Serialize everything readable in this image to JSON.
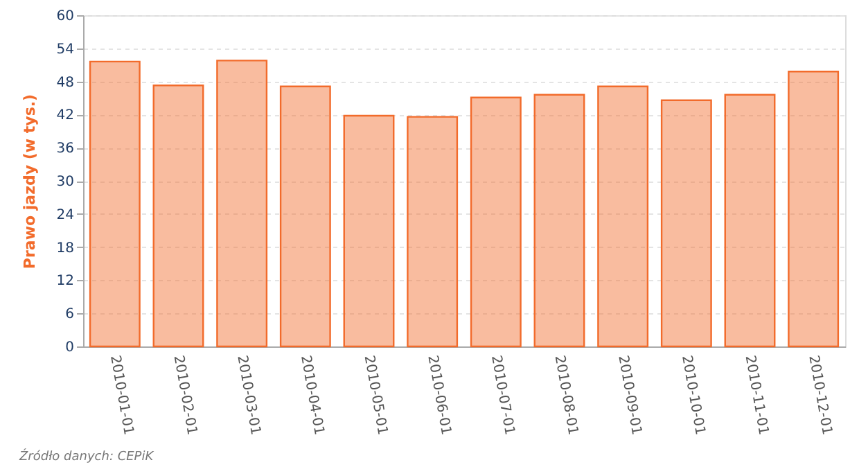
{
  "chart_data": {
    "type": "bar",
    "ylabel": "Prawo jazdy (w tys.)",
    "categories": [
      "2010-01-01",
      "2010-02-01",
      "2010-03-01",
      "2010-04-01",
      "2010-05-01",
      "2010-06-01",
      "2010-07-01",
      "2010-08-01",
      "2010-09-01",
      "2010-10-01",
      "2010-11-01",
      "2010-12-01"
    ],
    "values": [
      51.6,
      47.3,
      51.8,
      47.1,
      41.8,
      41.6,
      45.1,
      45.6,
      47.1,
      44.6,
      45.6,
      49.8
    ],
    "color": "#f26b2b",
    "ylim": [
      0,
      60
    ],
    "yticks": [
      0,
      6,
      12,
      18,
      24,
      30,
      36,
      42,
      48,
      54,
      60
    ],
    "grid": "y",
    "annotations": [
      "Źródło danych: CEPiK"
    ]
  }
}
